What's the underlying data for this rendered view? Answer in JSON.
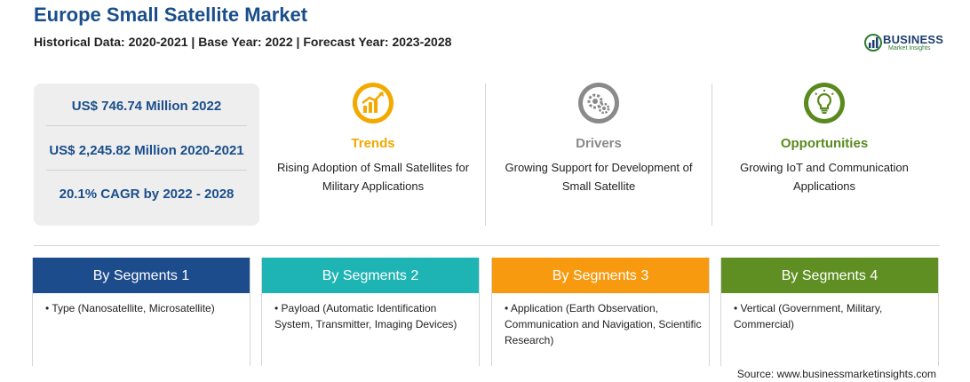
{
  "header": {
    "title": "Europe Small Satellite Market",
    "subtitle": "Historical Data: 2020-2021 | Base Year: 2022 | Forecast Year: 2023-2028"
  },
  "logo": {
    "line1": "BUSINESS",
    "line2": "Market Insights"
  },
  "stats": [
    "US$ 746.74 Million 2022",
    "US$ 2,245.82 Million 2020-2021",
    "20.1% CAGR by 2022 - 2028"
  ],
  "features": [
    {
      "title": "Trends",
      "desc": "Rising Adoption of Small Satellites for Military Applications",
      "color": "#f2a900",
      "icon": "growth-chart-icon"
    },
    {
      "title": "Drivers",
      "desc": "Growing Support for Development of Small Satellite",
      "color": "#8a8a8a",
      "icon": "gears-icon"
    },
    {
      "title": "Opportunities",
      "desc": "Growing IoT and Communication Applications",
      "color": "#5a8a1e",
      "icon": "lightbulb-icon"
    }
  ],
  "segments": [
    {
      "title": "By Segments 1",
      "color": "#1d4c8c",
      "text": "• Type (Nanosatellite, Microsatellite)"
    },
    {
      "title": "By Segments 2",
      "color": "#1fb4b4",
      "text": "• Payload (Automatic Identification System, Transmitter, Imaging Devices)"
    },
    {
      "title": "By Segments 3",
      "color": "#f79a0f",
      "text": "• Application (Earth Observation, Communication and Navigation, Scientific Research)"
    },
    {
      "title": "By Segments 4",
      "color": "#5f8f22",
      "text": "• Vertical (Government, Military, Commercial)"
    }
  ],
  "source": "Source: www.businessmarketinsights.com"
}
